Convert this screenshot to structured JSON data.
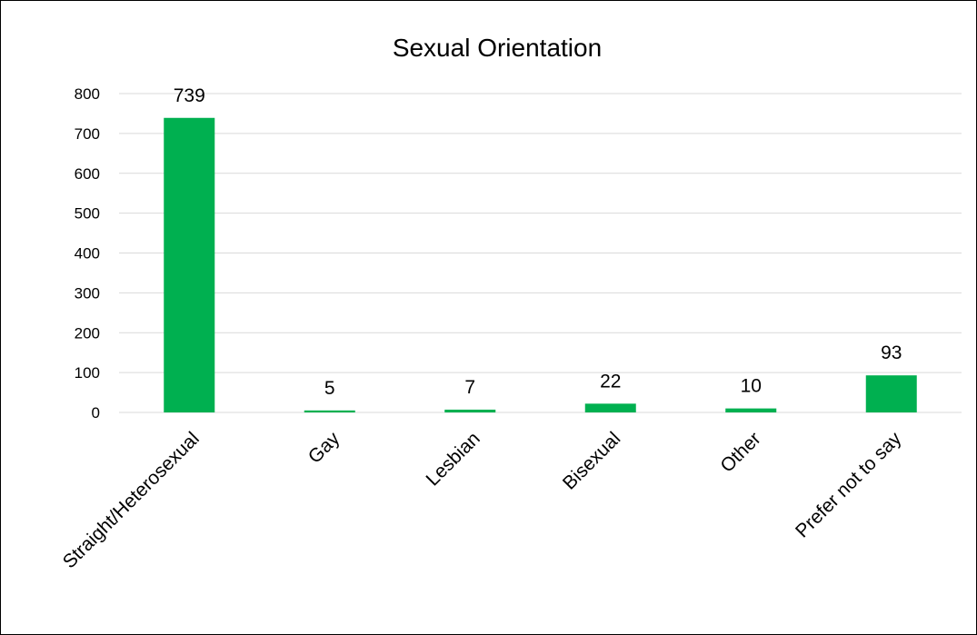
{
  "chart_data": {
    "type": "bar",
    "title": "Sexual Orientation",
    "xlabel": "",
    "ylabel": "",
    "categories": [
      "Straight/Heterosexual",
      "Gay",
      "Lesbian",
      "Bisexual",
      "Other",
      "Prefer not to say"
    ],
    "values": [
      739,
      5,
      7,
      22,
      10,
      93
    ],
    "data_labels": [
      "739",
      "5",
      "7",
      "22",
      "10",
      "93"
    ],
    "y_ticks": [
      0,
      100,
      200,
      300,
      400,
      500,
      600,
      700,
      800
    ],
    "ylim": [
      0,
      800
    ],
    "grid": true,
    "legend": "none",
    "colors": {
      "bar": "#00b050",
      "gridline": "#d9d9d9",
      "text": "#000000"
    }
  }
}
